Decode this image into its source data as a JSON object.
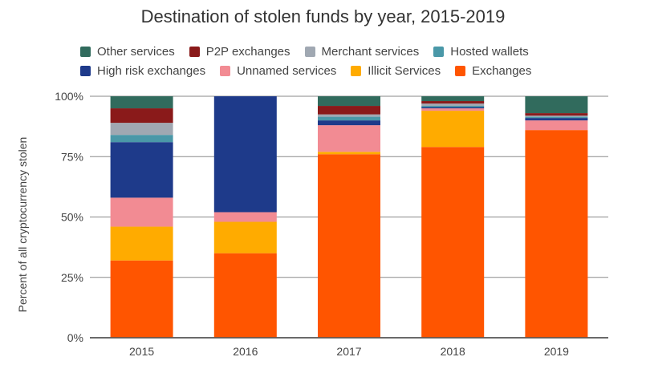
{
  "chart_data": {
    "type": "bar",
    "stacked": true,
    "title": "Destination of stolen funds by year, 2015-2019",
    "xlabel": "",
    "ylabel": "Percent of all cryptocurrency stolen",
    "ylim": [
      0,
      100
    ],
    "yticks": [
      "0%",
      "25%",
      "50%",
      "75%",
      "100%"
    ],
    "yticks_values": [
      0,
      25,
      50,
      75,
      100
    ],
    "grid": true,
    "legend_position": "top",
    "categories": [
      "2015",
      "2016",
      "2017",
      "2018",
      "2019"
    ],
    "series": [
      {
        "name": "Exchanges",
        "color": "#ff5500",
        "values": [
          32,
          35,
          76,
          79,
          86
        ]
      },
      {
        "name": "Illicit Services",
        "color": "#ffab00",
        "values": [
          14,
          13,
          1,
          15,
          0
        ]
      },
      {
        "name": "Unnamed services",
        "color": "#f28b93",
        "values": [
          12,
          4,
          11,
          1,
          4
        ]
      },
      {
        "name": "High risk exchanges",
        "color": "#1e3a8a",
        "values": [
          23,
          48,
          2,
          0.5,
          1
        ]
      },
      {
        "name": "Hosted wallets",
        "color": "#4a98a8",
        "values": [
          3,
          0,
          1.5,
          0.5,
          0.5
        ]
      },
      {
        "name": "Merchant services",
        "color": "#a0a8b2",
        "values": [
          5,
          0,
          1,
          1,
          0.5
        ]
      },
      {
        "name": "P2P exchanges",
        "color": "#8a1a1a",
        "values": [
          6,
          0,
          3.5,
          1,
          1
        ]
      },
      {
        "name": "Other services",
        "color": "#316b5d",
        "values": [
          5,
          0,
          4,
          2,
          7
        ]
      }
    ],
    "legend_rows": [
      [
        "Other services",
        "P2P exchanges",
        "Merchant services",
        "Hosted wallets"
      ],
      [
        "High risk exchanges",
        "Unnamed services",
        "Illicit Services",
        "Exchanges"
      ]
    ]
  }
}
